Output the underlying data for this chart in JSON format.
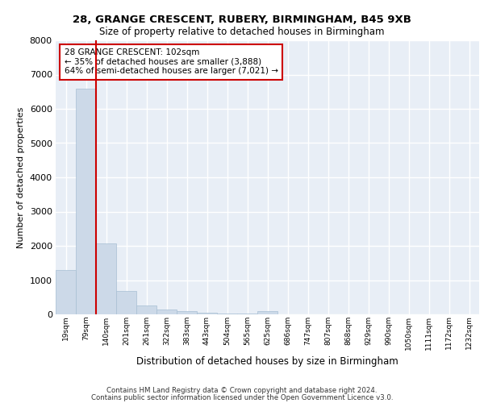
{
  "title1": "28, GRANGE CRESCENT, RUBERY, BIRMINGHAM, B45 9XB",
  "title2": "Size of property relative to detached houses in Birmingham",
  "xlabel": "Distribution of detached houses by size in Birmingham",
  "ylabel": "Number of detached properties",
  "footnote1": "Contains HM Land Registry data © Crown copyright and database right 2024.",
  "footnote2": "Contains public sector information licensed under the Open Government Licence v3.0.",
  "annotation_line1": "28 GRANGE CRESCENT: 102sqm",
  "annotation_line2": "← 35% of detached houses are smaller (3,888)",
  "annotation_line3": "64% of semi-detached houses are larger (7,021) →",
  "bar_color": "#ccd9e8",
  "bar_edge_color": "#a8bfd4",
  "red_line_color": "#cc0000",
  "annotation_box_color": "#cc0000",
  "background_color": "#e8eef6",
  "grid_color": "#ffffff",
  "categories": [
    "19sqm",
    "79sqm",
    "140sqm",
    "201sqm",
    "261sqm",
    "322sqm",
    "383sqm",
    "443sqm",
    "504sqm",
    "565sqm",
    "625sqm",
    "686sqm",
    "747sqm",
    "807sqm",
    "868sqm",
    "929sqm",
    "990sqm",
    "1050sqm",
    "1111sqm",
    "1172sqm",
    "1232sqm"
  ],
  "values": [
    1300,
    6600,
    2080,
    690,
    270,
    145,
    95,
    55,
    35,
    25,
    90,
    0,
    0,
    0,
    0,
    0,
    0,
    0,
    0,
    0,
    0
  ],
  "red_line_x": 1.5,
  "ylim": [
    0,
    8000
  ],
  "yticks": [
    0,
    1000,
    2000,
    3000,
    4000,
    5000,
    6000,
    7000,
    8000
  ]
}
